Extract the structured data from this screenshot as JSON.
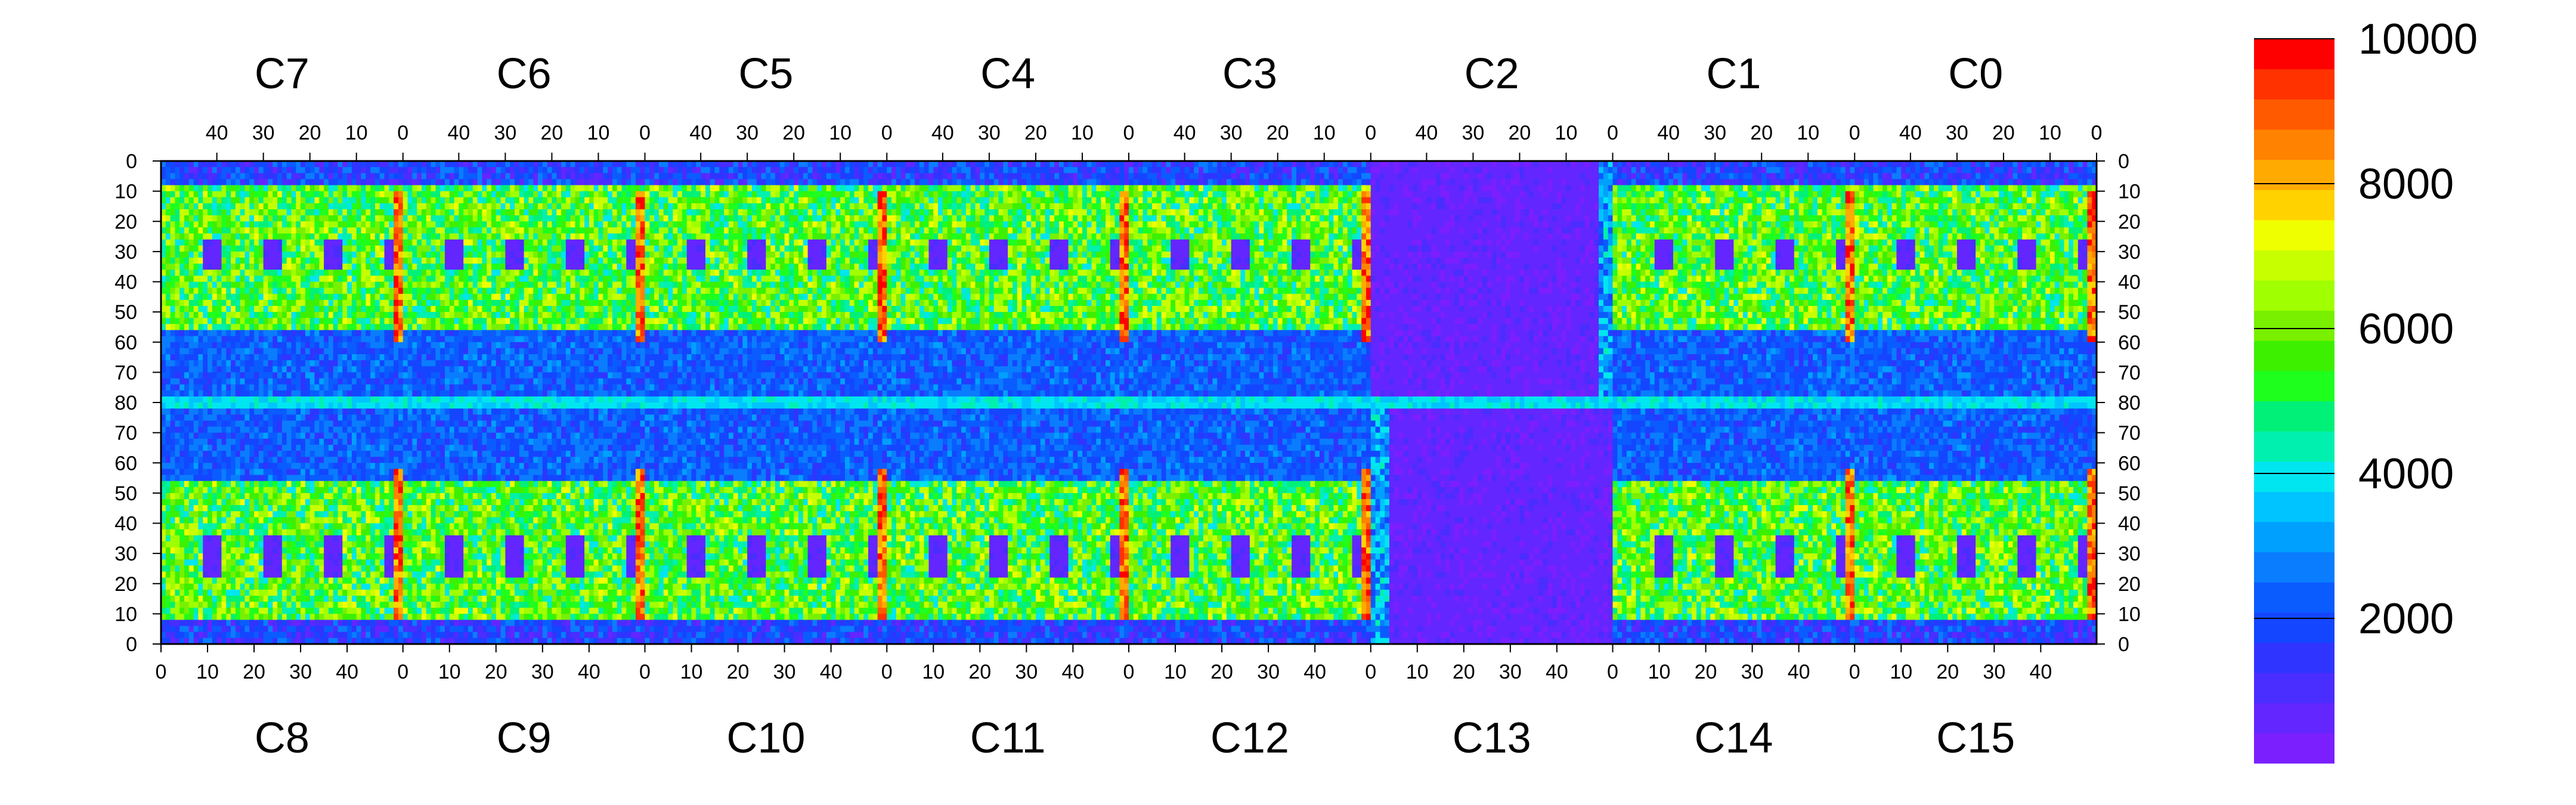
{
  "chart_data": {
    "type": "heatmap",
    "title": "",
    "colorbar": {
      "min": 0,
      "max": 10000,
      "ticks": [
        2000,
        4000,
        6000,
        8000,
        10000
      ],
      "tick_labels": [
        "2000",
        "4000",
        "6000",
        "8000",
        "10000"
      ],
      "levels": [
        "#7b1fff",
        "#6326ff",
        "#4a2dff",
        "#2f35ff",
        "#1446ff",
        "#0a5cff",
        "#0a7dff",
        "#00a0ff",
        "#00c4ff",
        "#00e6f0",
        "#00f0b0",
        "#00f078",
        "#1eff1e",
        "#3cf000",
        "#78f000",
        "#a0ff00",
        "#c8ff00",
        "#f0ff00",
        "#ffd200",
        "#ffaa00",
        "#ff8200",
        "#ff5a00",
        "#ff3200",
        "#ff0000"
      ]
    },
    "top_row": {
      "chips": [
        "C7",
        "C6",
        "C5",
        "C4",
        "C3",
        "C2",
        "C1",
        "C0"
      ],
      "x_tick_labels": [
        "40",
        "30",
        "20",
        "10",
        "0"
      ],
      "y_tick_labels": [
        "0",
        "10",
        "20",
        "30",
        "40",
        "50",
        "60",
        "70"
      ]
    },
    "bottom_row": {
      "chips": [
        "C8",
        "C9",
        "C10",
        "C11",
        "C12",
        "C13",
        "C14",
        "C15"
      ],
      "x_tick_labels": [
        "0",
        "10",
        "20",
        "30",
        "40"
      ],
      "y_tick_labels": [
        "70",
        "60",
        "50",
        "40",
        "30",
        "20",
        "10",
        "0"
      ]
    },
    "middle_label": "80",
    "column_range": [
      0,
      51
    ],
    "row_range": [
      0,
      80
    ],
    "dead_region_chips": [
      "C13",
      "C2"
    ],
    "hot_columns_value": 9000,
    "active_region_value": 5500,
    "background_value": 1500
  }
}
